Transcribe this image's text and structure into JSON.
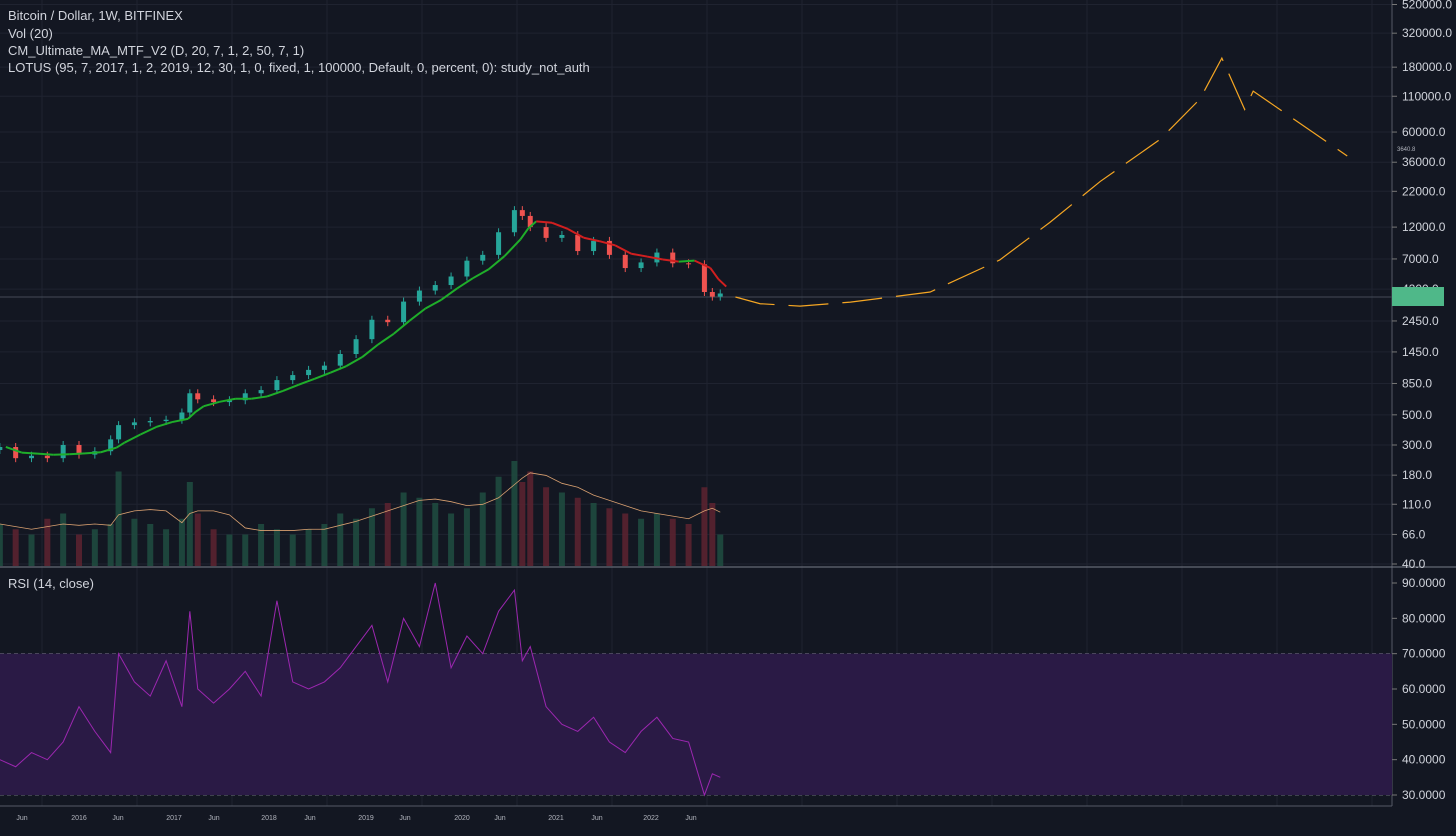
{
  "header": {
    "symbol_title": "Bitcoin / Dollar, 1W, BITFINEX",
    "indicator_vol": "Vol (20)",
    "indicator_ma": "CM_Ultimate_MA_MTF_V2 (D, 20, 7, 1, 2, 50, 7, 1)",
    "indicator_lotus": "LOTUS (95, 7, 2017, 1, 2, 2019, 12, 30, 1, 0, fixed, 1, 100000, Default, 0, percent, 0): study_not_auth",
    "indicator_rsi": "RSI (14, close)"
  },
  "colors": {
    "background": "#131722",
    "up": "#26a69a",
    "down": "#ef5350",
    "ma_up": "#1fae2a",
    "ma_down": "#d11f1f",
    "projection": "#f5a623",
    "rsi_line": "#9c27b0",
    "rsi_band": "#2a1a45",
    "price_label": "#4fb889"
  },
  "chart_data": [
    {
      "type": "candlestick",
      "scale": "log",
      "price_axis_ticks": [
        "520000.0",
        "320000.0",
        "180000.0",
        "110000.0",
        "60000.0",
        "36000.0",
        "22000.0",
        "12000.0",
        "7000.0",
        "4200.0",
        "2450.0",
        "1450.0",
        "850.0",
        "500.0",
        "300.0",
        "180.0",
        "110.0",
        "66.0",
        "40.0"
      ],
      "small_marker_label": "3640.8",
      "time_axis_ticks": [
        "Jun",
        "2016",
        "Jun",
        "2017",
        "Jun",
        "2018",
        "Jun",
        "2019",
        "Jun",
        "2020",
        "Jun",
        "2021",
        "Jun",
        "2022",
        "Jun"
      ],
      "series": [
        {
          "date": "2015-03",
          "close": 290
        },
        {
          "date": "2015-05",
          "close": 240
        },
        {
          "date": "2015-07",
          "close": 250
        },
        {
          "date": "2015-09",
          "close": 240
        },
        {
          "date": "2015-11",
          "close": 300
        },
        {
          "date": "2016-01",
          "close": 255
        },
        {
          "date": "2016-03",
          "close": 270
        },
        {
          "date": "2016-05",
          "close": 330
        },
        {
          "date": "2016-06",
          "close": 420
        },
        {
          "date": "2016-08",
          "close": 440
        },
        {
          "date": "2016-10",
          "close": 450
        },
        {
          "date": "2016-12",
          "close": 460
        },
        {
          "date": "2017-02",
          "close": 520
        },
        {
          "date": "2017-03",
          "close": 720
        },
        {
          "date": "2017-04",
          "close": 650
        },
        {
          "date": "2017-06",
          "close": 620
        },
        {
          "date": "2017-08",
          "close": 640
        },
        {
          "date": "2017-10",
          "close": 720
        },
        {
          "date": "2017-12",
          "close": 760
        },
        {
          "date": "2018-02",
          "close": 900
        },
        {
          "date": "2018-04",
          "close": 980
        },
        {
          "date": "2018-06",
          "close": 1070
        },
        {
          "date": "2018-08",
          "close": 1150
        },
        {
          "date": "2018-10",
          "close": 1400
        },
        {
          "date": "2018-12",
          "close": 1800
        },
        {
          "date": "2019-02",
          "close": 2500
        },
        {
          "date": "2019-04",
          "close": 2400
        },
        {
          "date": "2019-06",
          "close": 3400
        },
        {
          "date": "2019-08",
          "close": 4100
        },
        {
          "date": "2019-10",
          "close": 4500
        },
        {
          "date": "2019-12",
          "close": 5200
        },
        {
          "date": "2020-02",
          "close": 6800
        },
        {
          "date": "2020-04",
          "close": 7500
        },
        {
          "date": "2020-06",
          "close": 11000
        },
        {
          "date": "2020-08",
          "close": 16000
        },
        {
          "date": "2020-09",
          "close": 14500
        },
        {
          "date": "2020-10",
          "close": 12000
        },
        {
          "date": "2020-12",
          "close": 10000
        },
        {
          "date": "2021-02",
          "close": 10500
        },
        {
          "date": "2021-04",
          "close": 8000
        },
        {
          "date": "2021-06",
          "close": 9500
        },
        {
          "date": "2021-08",
          "close": 7500
        },
        {
          "date": "2021-10",
          "close": 6000
        },
        {
          "date": "2021-12",
          "close": 6600
        },
        {
          "date": "2022-02",
          "close": 7800
        },
        {
          "date": "2022-04",
          "close": 6500
        },
        {
          "date": "2022-06",
          "close": 6400
        },
        {
          "date": "2022-08",
          "close": 4000
        },
        {
          "date": "2022-09",
          "close": 3700
        },
        {
          "date": "2022-10",
          "close": 3900
        }
      ],
      "volume_relative": [
        40,
        35,
        30,
        45,
        50,
        30,
        35,
        40,
        90,
        45,
        40,
        35,
        45,
        80,
        50,
        35,
        30,
        30,
        40,
        35,
        30,
        35,
        40,
        50,
        45,
        55,
        60,
        70,
        65,
        60,
        50,
        55,
        70,
        85,
        100,
        80,
        90,
        75,
        70,
        65,
        60,
        55,
        50,
        45,
        50,
        45,
        40,
        75,
        60,
        30
      ],
      "projection": [
        {
          "date": "2022.91",
          "price": 3675
        },
        {
          "date": "2023.17",
          "price": 3280
        },
        {
          "date": "2023.59",
          "price": 3150
        },
        {
          "date": "2024.12",
          "price": 3370
        },
        {
          "date": "2024.96",
          "price": 4000
        },
        {
          "date": "2025.69",
          "price": 6870
        },
        {
          "date": "2026.22",
          "price": 13000
        },
        {
          "date": "2026.75",
          "price": 26000
        },
        {
          "date": "2027.38",
          "price": 53000
        },
        {
          "date": "2027.80",
          "price": 105000
        },
        {
          "date": "2028.03",
          "price": 210000
        },
        {
          "date": "2028.27",
          "price": 88000
        },
        {
          "date": "2028.36",
          "price": 120000
        },
        {
          "date": "2029.35",
          "price": 40000
        }
      ]
    },
    {
      "type": "line",
      "name": "RSI (14, close)",
      "yaxis_ticks": [
        "90.0000",
        "80.0000",
        "70.0000",
        "60.0000",
        "50.0000",
        "40.0000",
        "30.0000"
      ],
      "ylim": [
        30,
        90
      ],
      "band": [
        30,
        70
      ],
      "values": [
        40,
        38,
        42,
        40,
        45,
        55,
        48,
        42,
        70,
        62,
        58,
        68,
        55,
        82,
        60,
        56,
        60,
        65,
        58,
        85,
        62,
        60,
        62,
        66,
        72,
        78,
        62,
        80,
        72,
        90,
        66,
        75,
        70,
        82,
        88,
        68,
        72,
        55,
        50,
        48,
        52,
        45,
        42,
        48,
        52,
        46,
        45,
        30,
        36,
        35
      ]
    }
  ]
}
